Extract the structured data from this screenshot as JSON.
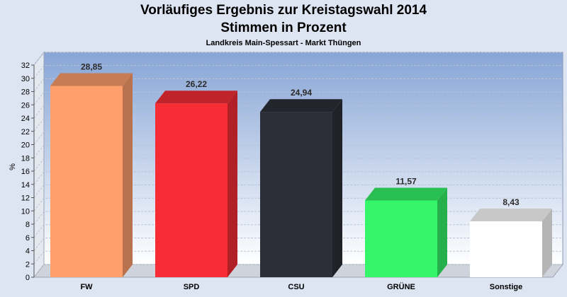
{
  "chart_data": {
    "type": "bar",
    "title": "Vorläufiges Ergebnis zur Kreistagswahl 2014",
    "subtitle": "Stimmen in Prozent",
    "caption": "Landkreis Main-Spessart - Markt Thüngen",
    "ylabel": "%",
    "xlabel": "",
    "ylim": [
      0,
      32
    ],
    "yticks": [
      0,
      2,
      4,
      6,
      8,
      10,
      12,
      14,
      16,
      18,
      20,
      22,
      24,
      26,
      28,
      30,
      32
    ],
    "categories": [
      "FW",
      "SPD",
      "CSU",
      "GRÜNE",
      "Sonstige"
    ],
    "values": [
      28.85,
      26.22,
      24.94,
      11.57,
      8.43
    ],
    "value_labels": [
      "28,85",
      "26,22",
      "24,94",
      "11,57",
      "8,43"
    ],
    "colors": [
      "#ff9f6b",
      "#f72d36",
      "#2c2f37",
      "#35f56a",
      "#ffffff"
    ],
    "grid": true
  }
}
